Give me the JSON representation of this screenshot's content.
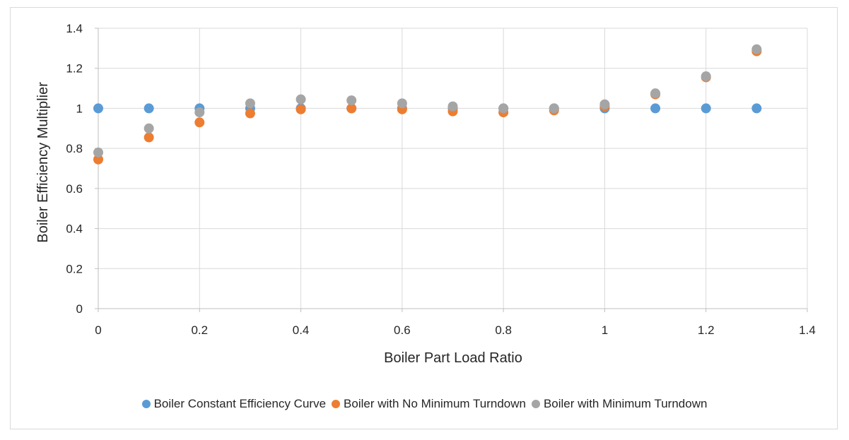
{
  "chart_data": {
    "type": "scatter",
    "title": "",
    "xlabel": "Boiler Part Load Ratio",
    "ylabel": "Boiler Efficiency Multiplier",
    "xlim": [
      0,
      1.4
    ],
    "ylim": [
      0,
      1.4
    ],
    "x_ticks": [
      "0",
      "0.2",
      "0.4",
      "0.6",
      "0.8",
      "1",
      "1.2",
      "1.4"
    ],
    "y_ticks": [
      "0",
      "0.2",
      "0.4",
      "0.6",
      "0.8",
      "1",
      "1.2",
      "1.4"
    ],
    "grid": "on",
    "legend_position": "bottom",
    "series": [
      {
        "name": "Boiler Constant Efficiency Curve",
        "color": "#5b9bd5",
        "x": [
          0,
          0.1,
          0.2,
          0.3,
          0.4,
          0.5,
          0.6,
          0.7,
          0.8,
          0.9,
          1.0,
          1.1,
          1.2,
          1.3
        ],
        "y": [
          1.0,
          1.0,
          1.0,
          1.0,
          1.0,
          1.0,
          1.0,
          1.0,
          1.0,
          1.0,
          1.0,
          1.0,
          1.0,
          1.0
        ]
      },
      {
        "name": "Boiler with No Minimum Turndown",
        "color": "#ed7d31",
        "x": [
          0,
          0.1,
          0.2,
          0.3,
          0.4,
          0.5,
          0.6,
          0.7,
          0.8,
          0.9,
          1.0,
          1.1,
          1.2,
          1.3
        ],
        "y": [
          0.745,
          0.855,
          0.93,
          0.975,
          0.995,
          1.0,
          0.995,
          0.985,
          0.98,
          0.99,
          1.01,
          1.07,
          1.155,
          1.285
        ]
      },
      {
        "name": "Boiler with Minimum Turndown",
        "color": "#a5a5a5",
        "x": [
          0,
          0.1,
          0.2,
          0.3,
          0.4,
          0.5,
          0.6,
          0.7,
          0.8,
          0.9,
          1.0,
          1.1,
          1.2,
          1.3
        ],
        "y": [
          0.78,
          0.9,
          0.98,
          1.025,
          1.045,
          1.04,
          1.025,
          1.01,
          1.0,
          1.0,
          1.02,
          1.075,
          1.16,
          1.295
        ]
      }
    ]
  }
}
